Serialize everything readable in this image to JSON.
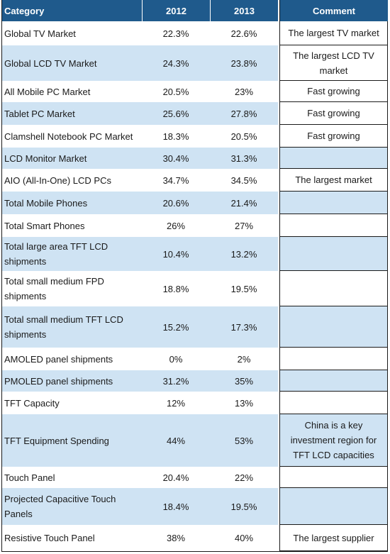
{
  "headers": {
    "category": "Category",
    "y2012": "2012",
    "y2013": "2013",
    "comment": "Comment"
  },
  "rows": [
    {
      "category": "Global TV Market",
      "y2012": "22.3%",
      "y2013": "22.6%",
      "comment": "The largest TV market"
    },
    {
      "category": "Global LCD TV Market",
      "y2012": "24.3%",
      "y2013": "23.8%",
      "comment": "The largest LCD TV market"
    },
    {
      "category": "All Mobile PC Market",
      "y2012": "20.5%",
      "y2013": "23%",
      "comment": "Fast growing"
    },
    {
      "category": "Tablet PC Market",
      "y2012": "25.6%",
      "y2013": "27.8%",
      "comment": "Fast growing"
    },
    {
      "category": "Clamshell Notebook PC Market",
      "y2012": "18.3%",
      "y2013": "20.5%",
      "comment": "Fast growing"
    },
    {
      "category": "LCD Monitor Market",
      "y2012": "30.4%",
      "y2013": "31.3%",
      "comment": ""
    },
    {
      "category": "AIO (All-In-One) LCD PCs",
      "y2012": "34.7%",
      "y2013": "34.5%",
      "comment": "The largest market"
    },
    {
      "category": "Total Mobile Phones",
      "y2012": "20.6%",
      "y2013": "21.4%",
      "comment": ""
    },
    {
      "category": "Total Smart Phones",
      "y2012": "26%",
      "y2013": "27%",
      "comment": ""
    },
    {
      "category": "Total large area TFT LCD shipments",
      "y2012": "10.4%",
      "y2013": "13.2%",
      "comment": ""
    },
    {
      "category": "Total small medium FPD shipments",
      "y2012": "18.8%",
      "y2013": "19.5%",
      "comment": ""
    },
    {
      "category": "Total small medium TFT LCD shipments",
      "y2012": "15.2%",
      "y2013": "17.3%",
      "comment": ""
    },
    {
      "category": "AMOLED panel shipments",
      "y2012": "0%",
      "y2013": "2%",
      "comment": ""
    },
    {
      "category": "PMOLED panel shipments",
      "y2012": "31.2%",
      "y2013": "35%",
      "comment": ""
    },
    {
      "category": "TFT Capacity",
      "y2012": "12%",
      "y2013": "13%",
      "comment": ""
    },
    {
      "category": "TFT Equipment Spending",
      "y2012": "44%",
      "y2013": "53%",
      "comment": "China is a key investment region for TFT LCD capacities"
    },
    {
      "category": "Touch Panel",
      "y2012": "20.4%",
      "y2013": "22%",
      "comment": ""
    },
    {
      "category": "Projected Capacitive Touch Panels",
      "y2012": "18.4%",
      "y2013": "19.5%",
      "comment": ""
    },
    {
      "category": "Resistive Touch Panel",
      "y2012": "38%",
      "y2013": "40%",
      "comment": "The largest supplier"
    }
  ]
}
